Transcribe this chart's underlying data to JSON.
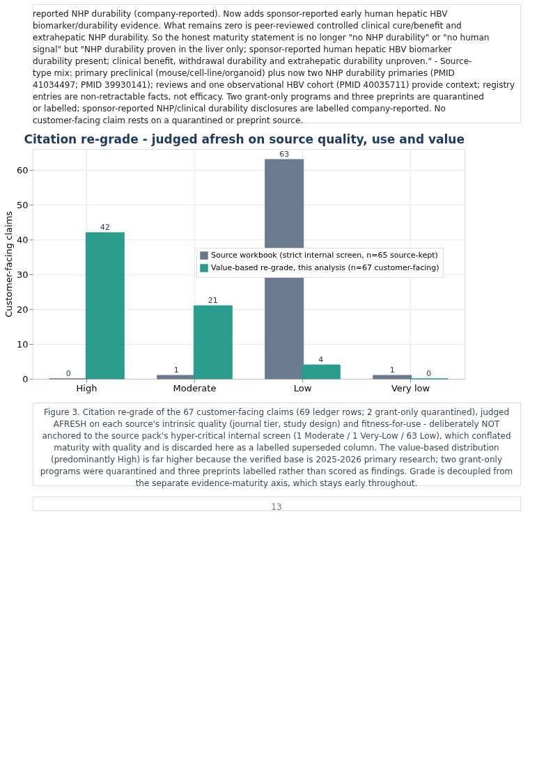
{
  "chart_data": {
    "type": "bar",
    "title": "Citation re-grade - judged afresh on source quality, use and value",
    "ylabel": "Customer-facing claims",
    "categories": [
      "High",
      "Moderate",
      "Low",
      "Very low"
    ],
    "series": [
      {
        "name": "Source workbook (strict internal screen, n=65 source-kept)",
        "color": "#6b7a8f",
        "values": [
          0,
          1,
          63,
          1
        ]
      },
      {
        "name": "Value-based re-grade, this analysis (n=67 customer-facing)",
        "color": "#2a9d8f",
        "values": [
          42,
          21,
          4,
          0
        ]
      }
    ],
    "ylim": [
      0,
      66
    ],
    "yticks": [
      0,
      10,
      20,
      30,
      40,
      50,
      60
    ],
    "grid": true,
    "legend": "right",
    "data_labels": true,
    "annotations": [
      "reported NHP durability (company-reported). Now adds sponsor-reported early human hepatic HBV biomarker/durability evidence. What remains zero is peer-reviewed controlled clinical cure/benefit and extrahepatic NHP durability. So the honest maturity statement is no longer \"no NHP durability\" or \"no human signal\" but \"NHP durability proven in the liver only; sponsor-reported human hepatic HBV biomarker durability present; clinical benefit, withdrawal durability and extrahepatic durability unproven.\" - Source-type mix: primary preclinical (mouse/cell-line/organoid) plus now two NHP durability primaries (PMID 41034497; PMID 39930141); reviews and one observational HBV cohort (PMID 40035711) provide context; registry entries are non-retractable facts, not efficacy. Two grant-only programs and three preprints are quarantined or labelled; sponsor-reported NHP/clinical durability disclosures are labelled company-reported. No customer-facing claim rests on a quarantined or preprint source.",
      "Figure 3. Citation re-grade of the 67 customer-facing claims (69 ledger rows; 2 grant-only quarantined), judged AFRESH on each source's intrinsic quality (journal tier, study design) and fitness-for-use - deliberately NOT anchored to the source pack's hyper-critical internal screen (1 Moderate / 1 Very-Low / 63 Low), which conflated maturity with quality and is discarded here as a labelled superseded column. The value-based distribution (predominantly High) is far higher because the verified base is 2025-2026 primary research; two grant-only programs were quarantined and three preprints labelled rather than scored as findings. Grade is decoupled from the separate evidence-maturity axis, which stays early throughout.",
      "13"
    ]
  }
}
